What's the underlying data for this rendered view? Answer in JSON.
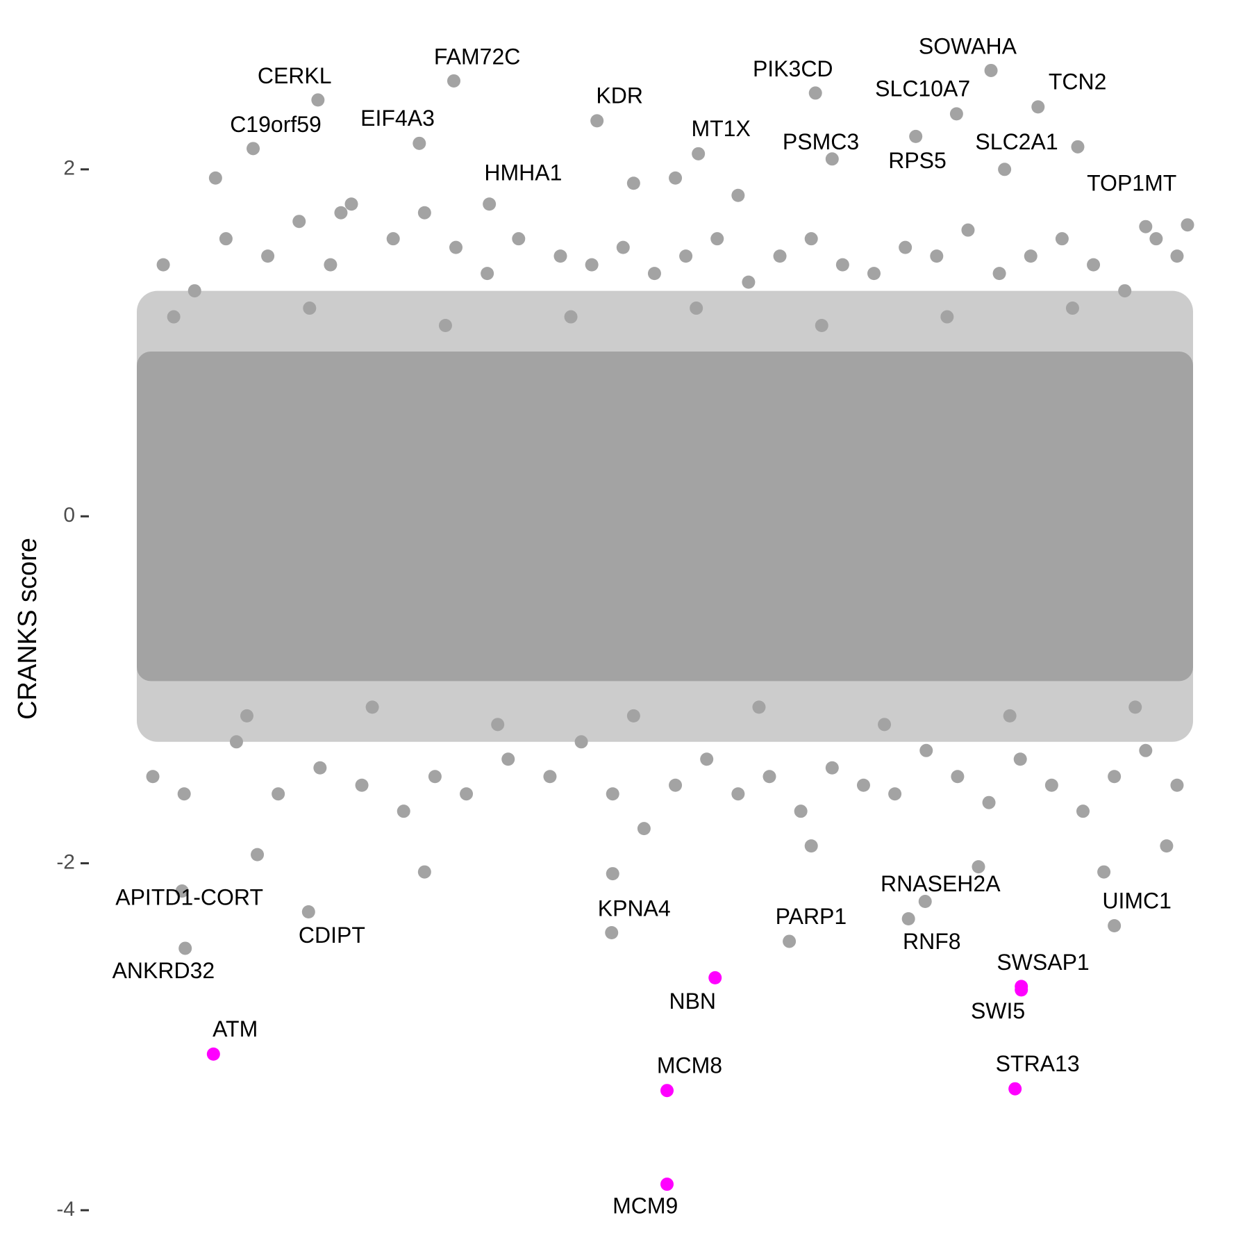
{
  "chart_data": {
    "type": "scatter",
    "y_label": "CRANKS score",
    "xlim": [
      0,
      100
    ],
    "ylim": [
      -4,
      2.7
    ],
    "yticks": [
      -4,
      -2,
      0,
      2
    ],
    "series": [
      {
        "color": "#a3a3a3",
        "x": [
          16.8,
          10.6,
          29.8,
          26.5,
          43.5,
          33.2,
          53.2,
          64.4,
          66.0,
          81.2,
          77.9,
          85.7,
          74.0,
          82.5,
          89.5,
          3.8,
          4.1,
          15.9,
          44.9,
          61.9,
          74.9,
          73.3,
          93.0
        ],
        "values": [
          2.4,
          2.12,
          2.51,
          2.15,
          2.28,
          1.8,
          2.09,
          2.44,
          2.06,
          2.57,
          2.32,
          2.36,
          2.19,
          2.0,
          2.13,
          -2.16,
          -2.49,
          -2.28,
          -2.4,
          -2.45,
          -2.22,
          -2.32,
          -2.36
        ],
        "labels": [
          "CERKL",
          "C19orf59",
          "FAM72C",
          "EIF4A3",
          "KDR",
          "HMHA1",
          "MT1X",
          "PIK3CD",
          "PSMC3",
          "SOWAHA",
          "SLC10A7",
          "TCN2",
          "RPS5",
          "SLC2A1",
          "TOP1MT",
          "APITD1-CORT",
          "ANKRD32",
          "CDIPT",
          "KPNA4",
          "PARP1",
          "RNASEH2A",
          "RNF8",
          "UIMC1"
        ]
      },
      {
        "color": "#a3a3a3",
        "x": [
          2,
          5,
          8,
          12,
          15,
          18,
          20,
          24,
          27,
          30,
          33,
          36,
          40,
          43,
          46,
          49,
          52,
          55,
          58,
          61,
          64,
          67,
          70,
          73,
          76,
          79,
          82,
          85,
          88,
          91,
          94,
          97,
          99,
          7,
          19,
          47,
          51,
          57,
          96,
          100,
          1,
          4,
          9,
          13,
          17,
          21,
          25,
          28,
          31,
          35,
          39,
          42,
          45,
          48,
          51,
          54,
          57,
          60,
          63,
          66,
          69,
          72,
          75,
          78,
          81,
          84,
          87,
          90,
          93,
          96,
          99,
          11,
          27,
          45,
          64,
          80,
          92,
          98,
          3,
          10,
          16,
          22,
          29,
          34,
          41,
          47,
          53,
          59,
          65,
          71,
          77,
          83,
          89,
          95
        ],
        "values": [
          1.45,
          1.3,
          1.6,
          1.5,
          1.7,
          1.45,
          1.8,
          1.6,
          1.75,
          1.55,
          1.4,
          1.6,
          1.5,
          1.45,
          1.55,
          1.4,
          1.5,
          1.6,
          1.35,
          1.5,
          1.6,
          1.45,
          1.4,
          1.55,
          1.5,
          1.65,
          1.4,
          1.5,
          1.6,
          1.45,
          1.3,
          1.6,
          1.5,
          1.95,
          1.75,
          1.92,
          1.95,
          1.85,
          1.67,
          1.68,
          -1.5,
          -1.6,
          -1.3,
          -1.6,
          -1.45,
          -1.55,
          -1.7,
          -1.5,
          -1.6,
          -1.4,
          -1.5,
          -1.3,
          -1.6,
          -1.8,
          -1.55,
          -1.4,
          -1.6,
          -1.5,
          -1.7,
          -1.45,
          -1.55,
          -1.6,
          -1.35,
          -1.5,
          -1.65,
          -1.4,
          -1.55,
          -1.7,
          -1.5,
          -1.35,
          -1.55,
          -1.95,
          -2.05,
          -2.06,
          -1.9,
          -2.02,
          -2.05,
          -1.9,
          1.15,
          -1.15,
          1.2,
          -1.1,
          1.1,
          -1.2,
          1.15,
          -1.15,
          1.2,
          -1.1,
          1.1,
          -1.2,
          1.15,
          -1.15,
          1.2,
          -1.1
        ]
      },
      {
        "color": "#ff00ff",
        "x": [
          54.8,
          84.1,
          84.1,
          6.8,
          50.2,
          83.5,
          50.2
        ],
        "values": [
          -2.66,
          -2.71,
          -2.73,
          -3.1,
          -3.31,
          -3.3,
          -3.85
        ],
        "labels": [
          "NBN",
          "SWSAP1",
          "SWI5",
          "ATM",
          "MCM8",
          "STRA13",
          "MCM9"
        ]
      }
    ]
  }
}
